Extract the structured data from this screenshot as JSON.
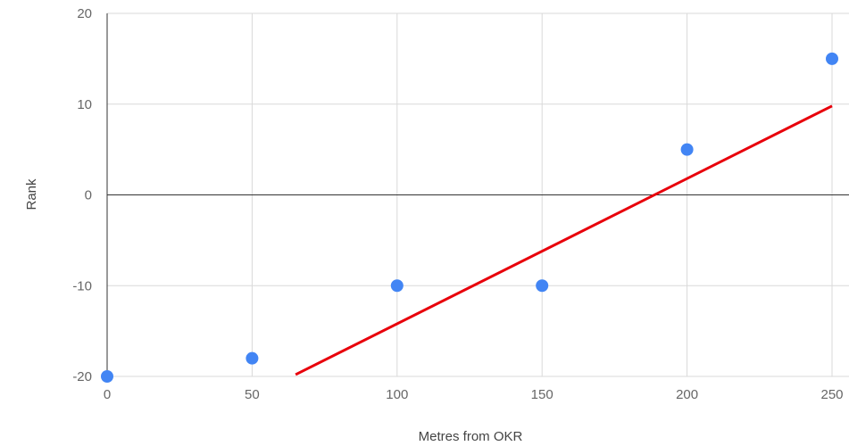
{
  "chart_data": {
    "type": "scatter",
    "title": "",
    "xlabel": "Metres from OKR",
    "ylabel": "Rank",
    "xlim": [
      0,
      250
    ],
    "ylim": [
      -20,
      20
    ],
    "x_ticks": [
      0,
      50,
      100,
      150,
      200,
      250
    ],
    "y_ticks": [
      -20,
      -10,
      0,
      10,
      20
    ],
    "grid": true,
    "legend": "none",
    "series": [
      {
        "points": [
          {
            "x": 0,
            "y": -20
          },
          {
            "x": 50,
            "y": -18
          },
          {
            "x": 100,
            "y": -10
          },
          {
            "x": 150,
            "y": -10
          },
          {
            "x": 200,
            "y": 5
          },
          {
            "x": 250,
            "y": 15
          }
        ],
        "color": "#4285f4"
      }
    ],
    "trendline": {
      "x": [
        65,
        250
      ],
      "y": [
        -19.8,
        9.8
      ],
      "color": "#e8000b"
    },
    "zero_line_color": "#333333",
    "grid_color": "#d9d9d9"
  }
}
